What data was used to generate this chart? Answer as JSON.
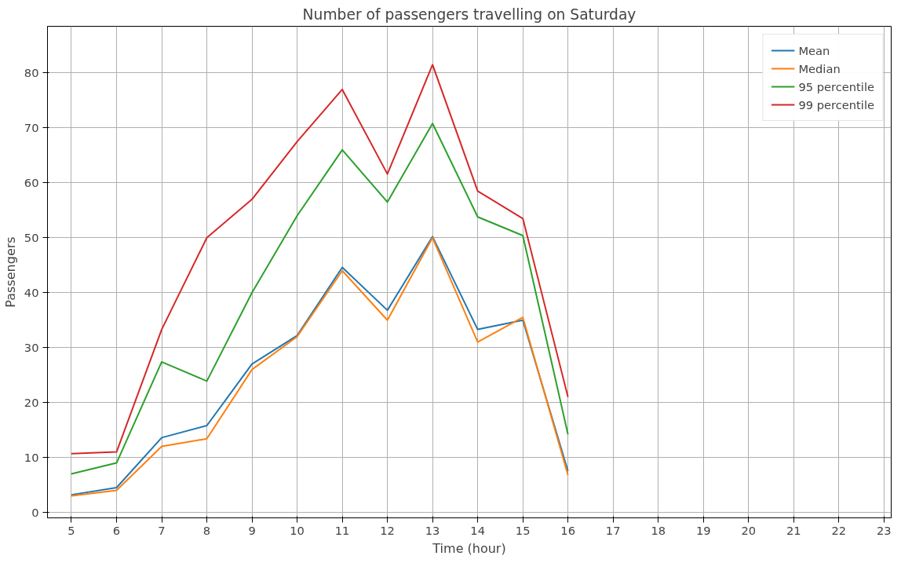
{
  "chart_data": {
    "type": "line",
    "title": "Number of passengers travelling on Saturday",
    "xlabel": "Time (hour)",
    "ylabel": "Passengers",
    "x": [
      5,
      6,
      7,
      8,
      9,
      10,
      11,
      12,
      13,
      14,
      15,
      16
    ],
    "series": [
      {
        "name": "Mean",
        "color": "#1f77b4",
        "values": [
          3.2,
          4.5,
          13.6,
          15.8,
          27,
          32.2,
          44.6,
          36.8,
          50.2,
          33.3,
          35,
          7.5
        ]
      },
      {
        "name": "Median",
        "color": "#ff7f0e",
        "values": [
          3,
          4,
          12,
          13.4,
          26,
          32,
          44,
          35,
          50,
          31,
          35.5,
          6.8
        ]
      },
      {
        "name": "95 percentile",
        "color": "#2ca02c",
        "values": [
          7,
          9,
          27.4,
          23.9,
          40,
          54,
          66,
          56.5,
          70.8,
          53.8,
          50.4,
          14.2
        ]
      },
      {
        "name": "99 percentile",
        "color": "#d62728",
        "values": [
          10.7,
          11,
          33.3,
          50,
          57,
          67.5,
          77,
          61.6,
          81.5,
          58.5,
          53.5,
          21
        ]
      }
    ],
    "xlim": [
      4.47,
      23.16
    ],
    "ylim": [
      -1,
      88.5
    ],
    "xticks": [
      5,
      6,
      7,
      8,
      9,
      10,
      11,
      12,
      13,
      14,
      15,
      16,
      17,
      18,
      19,
      20,
      21,
      22,
      23
    ],
    "yticks": [
      0,
      10,
      20,
      30,
      40,
      50,
      60,
      70,
      80
    ],
    "grid": true,
    "legend": "top right",
    "line_style": "solid",
    "marker": "none"
  }
}
